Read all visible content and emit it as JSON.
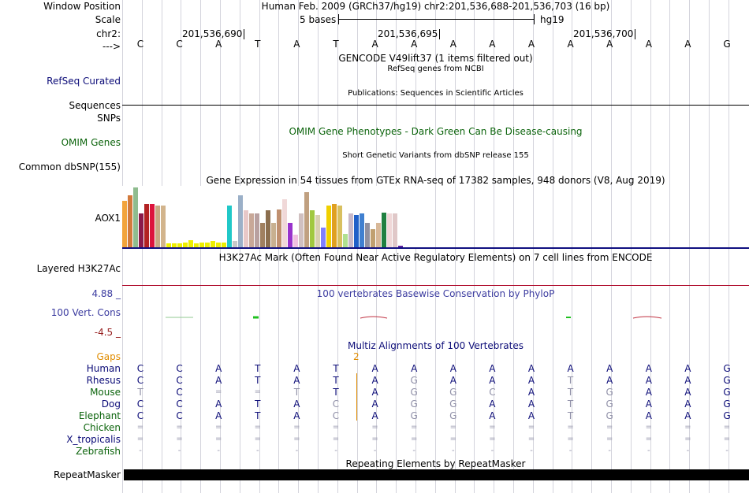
{
  "colors": {
    "grid": "#d4d4dc",
    "navy": "#0c0c78",
    "green": "#0c640c",
    "orange": "#e08c00",
    "cons_label": "#3c3ca0",
    "cons_neg": "#961e1e",
    "gap_orange": "#e08c00"
  },
  "header": {
    "window_position_label": "Window Position",
    "window_position_value": "Human Feb. 2009 (GRCh37/hg19)   chr2:201,536,688-201,536,703 (16 bp)",
    "scale_label": "Scale",
    "scale_text": "5 bases",
    "scale_assembly": "hg19",
    "chrom_label": "chr2:",
    "ticks": [
      "201,536,690",
      "201,536,695",
      "201,536,700"
    ],
    "arrow_label": "--->",
    "bases": [
      "C",
      "C",
      "A",
      "T",
      "A",
      "T",
      "A",
      "A",
      "A",
      "A",
      "A",
      "A",
      "A",
      "A",
      "A",
      "G"
    ]
  },
  "tracks": {
    "gencode_title": "GENCODE V49lift37 (1 items filtered out)",
    "refseq_title": "RefSeq genes from NCBI",
    "refseq_label": "RefSeq Curated",
    "publications_title": "Publications: Sequences in Scientific Articles",
    "sequences_label": "Sequences",
    "snps_label": "SNPs",
    "omim_title": "OMIM Gene Phenotypes - Dark Green Can Be Disease-causing",
    "omim_label": "OMIM Genes",
    "dbsnp_title": "Short Genetic Variants from dbSNP release 155",
    "dbsnp_label": "Common dbSNP(155)",
    "gtex_title": "Gene Expression in 54 tissues from GTEx RNA-seq of 17382 samples, 948 donors (V8, Aug 2019)",
    "gtex_label": "AOX1",
    "h3k27ac_title": "H3K27Ac Mark (Often Found Near Active Regulatory Elements) on 7 cell lines from ENCODE",
    "h3k27ac_label": "Layered H3K27Ac",
    "cons_max": "4.88 _",
    "cons_title": "100 vertebrates Basewise Conservation by PhyloP",
    "cons_label": "100 Vert. Cons",
    "cons_min": "-4.5 _",
    "multiz_title": "Multiz Alignments of 100 Vertebrates",
    "gaps_label": "Gaps",
    "gaps_value": "2",
    "repeat_title": "Repeating Elements by RepeatMasker",
    "repeat_label": "RepeatMasker"
  },
  "gtex_values": [
    {
      "v": 0.75,
      "c": "#f2a43c"
    },
    {
      "v": 0.85,
      "c": "#d27a3c"
    },
    {
      "v": 0.98,
      "c": "#8fbc8f"
    },
    {
      "v": 0.55,
      "c": "#8b1a4a"
    },
    {
      "v": 0.7,
      "c": "#b22222"
    },
    {
      "v": 0.7,
      "c": "#dc143c"
    },
    {
      "v": 0.68,
      "c": "#c8a882"
    },
    {
      "v": 0.68,
      "c": "#d2b48c"
    },
    {
      "v": 0.06,
      "c": "#eeee00"
    },
    {
      "v": 0.06,
      "c": "#eeee00"
    },
    {
      "v": 0.06,
      "c": "#eeee00"
    },
    {
      "v": 0.08,
      "c": "#eeee00"
    },
    {
      "v": 0.12,
      "c": "#eeee00"
    },
    {
      "v": 0.06,
      "c": "#eeee00"
    },
    {
      "v": 0.08,
      "c": "#eeee00"
    },
    {
      "v": 0.08,
      "c": "#eeee00"
    },
    {
      "v": 0.1,
      "c": "#eeee00"
    },
    {
      "v": 0.08,
      "c": "#eeee00"
    },
    {
      "v": 0.08,
      "c": "#eeee00"
    },
    {
      "v": 0.68,
      "c": "#20c8c8"
    },
    {
      "v": 0.1,
      "c": "#c8c8c8"
    },
    {
      "v": 0.84,
      "c": "#9bb0c8"
    },
    {
      "v": 0.6,
      "c": "#e8c8c8"
    },
    {
      "v": 0.55,
      "c": "#c8a898"
    },
    {
      "v": 0.55,
      "c": "#b8a0a0"
    },
    {
      "v": 0.4,
      "c": "#a08060"
    },
    {
      "v": 0.6,
      "c": "#8b6e4e"
    },
    {
      "v": 0.4,
      "c": "#c8b090"
    },
    {
      "v": 0.62,
      "c": "#c09070"
    },
    {
      "v": 0.78,
      "c": "#f0d8d8"
    },
    {
      "v": 0.4,
      "c": "#9932cc"
    },
    {
      "v": 0.2,
      "c": "#f0c0e0"
    },
    {
      "v": 0.55,
      "c": "#d0c0c0"
    },
    {
      "v": 0.9,
      "c": "#c0a080"
    },
    {
      "v": 0.6,
      "c": "#a0c840"
    },
    {
      "v": 0.52,
      "c": "#d8d0b0"
    },
    {
      "v": 0.32,
      "c": "#8080ff"
    },
    {
      "v": 0.68,
      "c": "#f0d000"
    },
    {
      "v": 0.7,
      "c": "#e0a020"
    },
    {
      "v": 0.68,
      "c": "#d8c060"
    },
    {
      "v": 0.22,
      "c": "#b0e090"
    },
    {
      "v": 0.55,
      "c": "#c8b8c8"
    },
    {
      "v": 0.52,
      "c": "#2060c8"
    },
    {
      "v": 0.55,
      "c": "#4080d0"
    },
    {
      "v": 0.4,
      "c": "#9090a0"
    },
    {
      "v": 0.3,
      "c": "#c0a070"
    },
    {
      "v": 0.4,
      "c": "#d8b898"
    },
    {
      "v": 0.56,
      "c": "#208040"
    },
    {
      "v": 0.55,
      "c": "#f0d8d8"
    },
    {
      "v": 0.55,
      "c": "#e0c8c8"
    },
    {
      "v": 0.03,
      "c": "#6020a0"
    }
  ],
  "alignment": {
    "species": [
      {
        "name": "Human",
        "color": "#0c0c78",
        "bases": [
          "C",
          "C",
          "A",
          "T",
          "A",
          "T",
          "A",
          "A",
          "A",
          "A",
          "A",
          "A",
          "A",
          "A",
          "A",
          "G"
        ],
        "gray": []
      },
      {
        "name": "Rhesus",
        "color": "#0c0c78",
        "bases": [
          "C",
          "C",
          "A",
          "T",
          "A",
          "T",
          "A",
          "G",
          "A",
          "A",
          "A",
          "T",
          "A",
          "A",
          "A",
          "G"
        ],
        "gray": [
          7,
          11
        ]
      },
      {
        "name": "Mouse",
        "color": "#0c640c",
        "bases": [
          "T",
          "C",
          "=",
          "=",
          "T",
          "T",
          "A",
          "G",
          "G",
          "C",
          "A",
          "T",
          "G",
          "A",
          "A",
          "G"
        ],
        "gray": [
          0,
          2,
          3,
          4,
          7,
          8,
          9,
          11,
          12
        ]
      },
      {
        "name": "Dog",
        "color": "#0c0c78",
        "bases": [
          "C",
          "C",
          "A",
          "T",
          "A",
          "C",
          "A",
          "G",
          "G",
          "A",
          "A",
          "T",
          "G",
          "A",
          "A",
          "G"
        ],
        "gray": [
          5,
          7,
          8,
          11,
          12
        ]
      },
      {
        "name": "Elephant",
        "color": "#0c640c",
        "bases": [
          "C",
          "C",
          "A",
          "T",
          "A",
          "C",
          "A",
          "G",
          "G",
          "A",
          "A",
          "T",
          "G",
          "A",
          "A",
          "G"
        ],
        "gray": [
          5,
          7,
          8,
          11,
          12
        ]
      },
      {
        "name": "Chicken",
        "color": "#0c640c",
        "bases": [
          "=",
          "=",
          "=",
          "=",
          "=",
          "=",
          "=",
          "=",
          "=",
          "=",
          "=",
          "=",
          "=",
          "=",
          "=",
          "="
        ],
        "gray": [
          0,
          1,
          2,
          3,
          4,
          5,
          6,
          7,
          8,
          9,
          10,
          11,
          12,
          13,
          14,
          15
        ]
      },
      {
        "name": "X_tropicalis",
        "color": "#0c0c78",
        "bases": [
          "=",
          "=",
          "=",
          "=",
          "=",
          "=",
          "=",
          "=",
          "=",
          "=",
          "=",
          "=",
          "=",
          "=",
          "=",
          "="
        ],
        "gray": [
          0,
          1,
          2,
          3,
          4,
          5,
          6,
          7,
          8,
          9,
          10,
          11,
          12,
          13,
          14,
          15
        ]
      },
      {
        "name": "Zebrafish",
        "color": "#0c640c",
        "bases": [
          "-",
          "-",
          "-",
          "-",
          "-",
          "-",
          "-",
          "-",
          "-",
          "-",
          "-",
          "-",
          "-",
          "-",
          "-",
          "-"
        ],
        "gray": [
          0,
          1,
          2,
          3,
          4,
          5,
          6,
          7,
          8,
          9,
          10,
          11,
          12,
          13,
          14,
          15
        ]
      }
    ]
  }
}
